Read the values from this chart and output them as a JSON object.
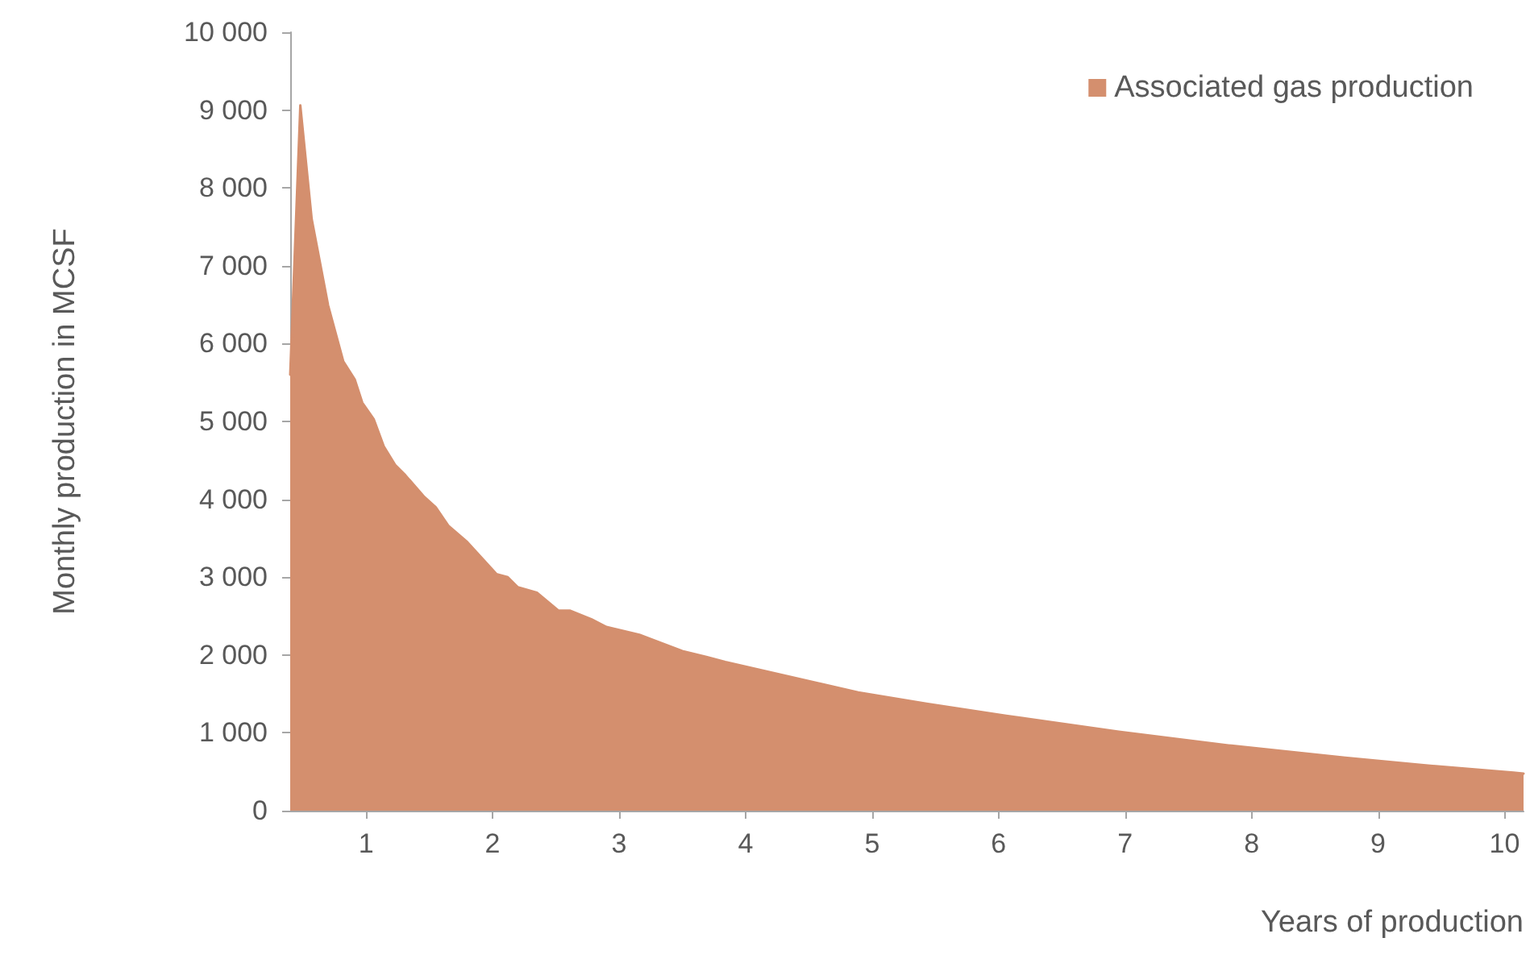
{
  "chart_data": {
    "type": "area",
    "xlabel": "Years of production",
    "ylabel": "Monthly production in MCSF",
    "x": [
      0.4,
      0.48,
      0.57,
      0.7,
      0.82,
      0.91,
      0.97,
      1.06,
      1.14,
      1.23,
      1.31,
      1.46,
      1.55,
      1.65,
      1.8,
      2.03,
      2.12,
      2.2,
      2.35,
      2.52,
      2.61,
      2.78,
      2.9,
      3.16,
      3.29,
      3.5,
      3.69,
      3.84,
      4.89,
      5.43,
      6.06,
      6.95,
      7.84,
      8.74,
      9.36,
      10.07,
      10.15
    ],
    "series": [
      {
        "name": "Associated gas production",
        "color": "#d48f6e",
        "values": [
          5600,
          9060,
          7600,
          6490,
          5770,
          5540,
          5240,
          5030,
          4680,
          4440,
          4310,
          4030,
          3900,
          3660,
          3450,
          3040,
          3000,
          2870,
          2800,
          2570,
          2570,
          2460,
          2360,
          2260,
          2180,
          2050,
          1975,
          1910,
          1520,
          1375,
          1220,
          1015,
          835,
          680,
          585,
          490,
          475
        ]
      }
    ],
    "xlim": [
      0.4,
      10.15
    ],
    "xticks": [
      1,
      2,
      3,
      4,
      5,
      6,
      7,
      8,
      9,
      10
    ],
    "ylim": [
      0,
      10000
    ],
    "yticks": [
      0,
      {
        "value": 1000,
        "label": "1 000"
      },
      {
        "value": 2000,
        "label": "2 000"
      },
      {
        "value": 3000,
        "label": "3 000"
      },
      {
        "value": 4000,
        "label": "4 000"
      },
      {
        "value": 5000,
        "label": "5 000"
      },
      {
        "value": 6000,
        "label": "6 000"
      },
      {
        "value": 7000,
        "label": "7 000"
      },
      {
        "value": 8000,
        "label": "8 000"
      },
      {
        "value": 9000,
        "label": "9 000"
      },
      {
        "value": 10000,
        "label": "10 000"
      }
    ],
    "grid": false,
    "legend": "top right",
    "marker": "none",
    "line_style": "solid"
  }
}
